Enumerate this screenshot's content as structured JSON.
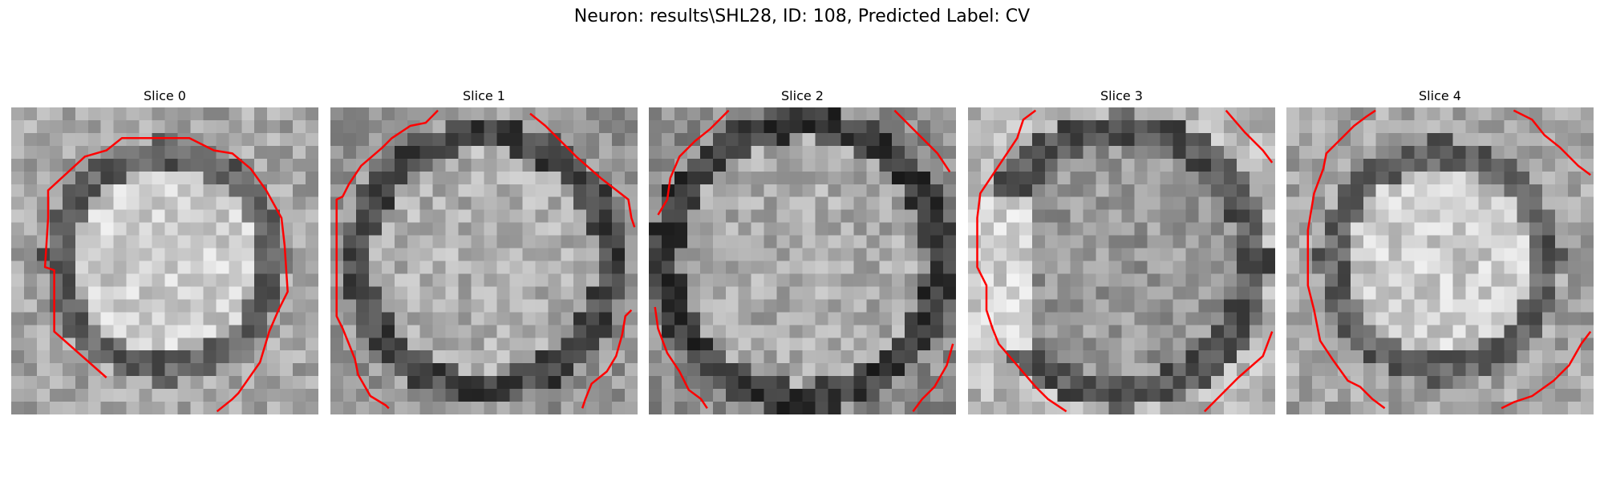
{
  "figure": {
    "title": "Neuron: results\\SHL28, ID: 108, Predicted Label: CV"
  },
  "panels": [
    {
      "title": "Slice 0",
      "contours": [
        [
          [
            0.31,
            0.88
          ],
          [
            0.14,
            0.73
          ],
          [
            0.14,
            0.53
          ],
          [
            0.11,
            0.52
          ],
          [
            0.12,
            0.36
          ],
          [
            0.12,
            0.27
          ],
          [
            0.24,
            0.16
          ],
          [
            0.31,
            0.14
          ],
          [
            0.36,
            0.1
          ],
          [
            0.58,
            0.1
          ],
          [
            0.66,
            0.14
          ],
          [
            0.72,
            0.15
          ],
          [
            0.78,
            0.2
          ],
          [
            0.83,
            0.27
          ],
          [
            0.88,
            0.36
          ],
          [
            0.89,
            0.45
          ],
          [
            0.9,
            0.6
          ],
          [
            0.87,
            0.66
          ],
          [
            0.84,
            0.73
          ],
          [
            0.81,
            0.83
          ],
          [
            0.74,
            0.93
          ],
          [
            0.72,
            0.95
          ],
          [
            0.67,
            0.99
          ]
        ]
      ],
      "pixelSeed": 1,
      "style": "bright-center"
    },
    {
      "title": "Slice 1",
      "contours": [
        [
          [
            0.35,
            0.01
          ],
          [
            0.31,
            0.05
          ],
          [
            0.26,
            0.06
          ],
          [
            0.2,
            0.1
          ],
          [
            0.17,
            0.13
          ],
          [
            0.1,
            0.19
          ],
          [
            0.06,
            0.25
          ],
          [
            0.04,
            0.29
          ],
          [
            0.02,
            0.3
          ],
          [
            0.02,
            0.68
          ],
          [
            0.04,
            0.72
          ],
          [
            0.06,
            0.77
          ],
          [
            0.08,
            0.82
          ],
          [
            0.09,
            0.87
          ],
          [
            0.13,
            0.94
          ],
          [
            0.18,
            0.97
          ],
          [
            0.19,
            0.98
          ]
        ],
        [
          [
            0.65,
            0.02
          ],
          [
            0.7,
            0.06
          ],
          [
            0.74,
            0.1
          ],
          [
            0.8,
            0.16
          ],
          [
            0.88,
            0.23
          ],
          [
            0.97,
            0.3
          ],
          [
            0.98,
            0.36
          ],
          [
            0.99,
            0.39
          ]
        ],
        [
          [
            0.98,
            0.66
          ],
          [
            0.96,
            0.68
          ],
          [
            0.95,
            0.74
          ],
          [
            0.93,
            0.81
          ],
          [
            0.9,
            0.86
          ],
          [
            0.85,
            0.9
          ],
          [
            0.83,
            0.95
          ],
          [
            0.82,
            0.98
          ]
        ]
      ],
      "pixelSeed": 2,
      "style": "dark-ring"
    },
    {
      "title": "Slice 2",
      "contours": [
        [
          [
            0.26,
            0.01
          ],
          [
            0.2,
            0.07
          ],
          [
            0.15,
            0.11
          ],
          [
            0.1,
            0.16
          ],
          [
            0.07,
            0.23
          ],
          [
            0.06,
            0.3
          ],
          [
            0.03,
            0.35
          ]
        ],
        [
          [
            0.8,
            0.01
          ],
          [
            0.87,
            0.08
          ],
          [
            0.94,
            0.15
          ],
          [
            0.98,
            0.21
          ]
        ],
        [
          [
            0.02,
            0.65
          ],
          [
            0.03,
            0.72
          ],
          [
            0.06,
            0.8
          ],
          [
            0.1,
            0.86
          ],
          [
            0.13,
            0.92
          ],
          [
            0.17,
            0.95
          ],
          [
            0.19,
            0.98
          ]
        ],
        [
          [
            0.99,
            0.77
          ],
          [
            0.97,
            0.84
          ],
          [
            0.93,
            0.91
          ],
          [
            0.89,
            0.95
          ],
          [
            0.86,
            0.99
          ]
        ]
      ],
      "pixelSeed": 3,
      "style": "flat-gray"
    },
    {
      "title": "Slice 3",
      "contours": [
        [
          [
            0.22,
            0.01
          ],
          [
            0.18,
            0.04
          ],
          [
            0.16,
            0.1
          ],
          [
            0.1,
            0.19
          ],
          [
            0.04,
            0.28
          ],
          [
            0.03,
            0.36
          ],
          [
            0.03,
            0.52
          ],
          [
            0.06,
            0.58
          ],
          [
            0.06,
            0.66
          ],
          [
            0.08,
            0.72
          ],
          [
            0.1,
            0.77
          ],
          [
            0.16,
            0.84
          ],
          [
            0.22,
            0.91
          ],
          [
            0.26,
            0.95
          ],
          [
            0.32,
            0.99
          ]
        ],
        [
          [
            0.84,
            0.01
          ],
          [
            0.9,
            0.08
          ],
          [
            0.96,
            0.14
          ],
          [
            0.99,
            0.18
          ]
        ],
        [
          [
            0.99,
            0.73
          ],
          [
            0.96,
            0.81
          ],
          [
            0.88,
            0.88
          ],
          [
            0.82,
            0.94
          ],
          [
            0.77,
            0.99
          ]
        ]
      ],
      "pixelSeed": 4,
      "style": "dark-left-bright-edge"
    },
    {
      "title": "Slice 4",
      "contours": [
        [
          [
            0.29,
            0.01
          ],
          [
            0.26,
            0.03
          ],
          [
            0.22,
            0.06
          ],
          [
            0.19,
            0.09
          ],
          [
            0.13,
            0.15
          ],
          [
            0.12,
            0.2
          ],
          [
            0.09,
            0.28
          ],
          [
            0.07,
            0.4
          ],
          [
            0.07,
            0.58
          ],
          [
            0.09,
            0.66
          ],
          [
            0.11,
            0.76
          ],
          [
            0.15,
            0.82
          ],
          [
            0.2,
            0.89
          ],
          [
            0.24,
            0.91
          ],
          [
            0.28,
            0.95
          ],
          [
            0.32,
            0.98
          ]
        ],
        [
          [
            0.74,
            0.01
          ],
          [
            0.8,
            0.04
          ],
          [
            0.84,
            0.09
          ],
          [
            0.89,
            0.13
          ],
          [
            0.95,
            0.19
          ],
          [
            0.99,
            0.22
          ]
        ],
        [
          [
            0.99,
            0.73
          ],
          [
            0.96,
            0.77
          ],
          [
            0.92,
            0.84
          ],
          [
            0.87,
            0.89
          ],
          [
            0.8,
            0.94
          ],
          [
            0.74,
            0.96
          ],
          [
            0.7,
            0.98
          ]
        ]
      ],
      "pixelSeed": 5,
      "style": "bright-center"
    }
  ],
  "colors": {
    "contour": "#ff0000",
    "background": "#ffffff"
  }
}
